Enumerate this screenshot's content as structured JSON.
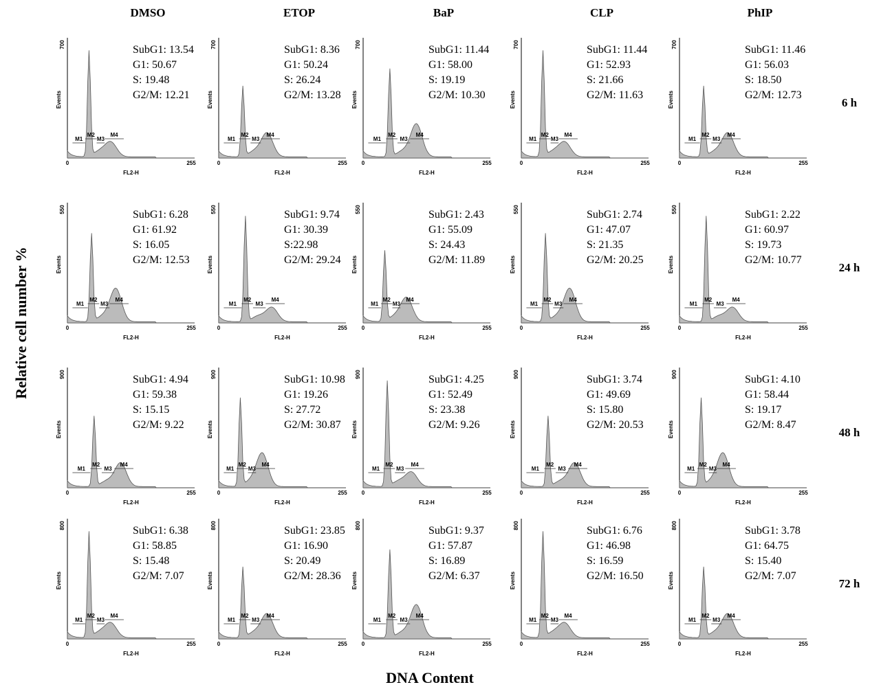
{
  "figure": {
    "columns": [
      "DMSO",
      "ETOP",
      "BaP",
      "CLP",
      "PhIP"
    ],
    "rows": [
      "6 h",
      "24 h",
      "48 h",
      "72 h"
    ],
    "row_ymax": [
      "700",
      "550",
      "900",
      "800"
    ],
    "y_label": "Relative cell number %",
    "x_label": "DNA Content",
    "panel_axis": {
      "y_label": "Events",
      "x_label": "FL2-H",
      "x_min": "0",
      "x_max": "255",
      "markers": [
        "M1",
        "M2",
        "M3",
        "M4"
      ]
    },
    "panels": [
      [
        [
          "SubG1: 13.54",
          "G1: 50.67",
          "S: 19.48",
          "G2/M: 12.21"
        ],
        [
          "SubG1: 8.36",
          "G1: 50.24",
          "S: 26.24",
          "G2/M: 13.28"
        ],
        [
          "SubG1: 11.44",
          "G1: 58.00",
          "S: 19.19",
          "G2/M: 10.30"
        ],
        [
          "SubG1: 11.44",
          "G1: 52.93",
          "S: 21.66",
          "G2/M: 11.63"
        ],
        [
          "SubG1: 11.46",
          "G1: 56.03",
          "S: 18.50",
          "G2/M: 12.73"
        ]
      ],
      [
        [
          "SubG1: 6.28",
          "G1: 61.92",
          "S: 16.05",
          "G2/M: 12.53"
        ],
        [
          "SubG1: 9.74",
          "G1: 30.39",
          "S:22.98",
          "G2/M: 29.24"
        ],
        [
          "SubG1: 2.43",
          "G1: 55.09",
          "S: 24.43",
          "G2/M: 11.89"
        ],
        [
          "SubG1: 2.74",
          "G1: 47.07",
          "S: 21.35",
          "G2/M: 20.25"
        ],
        [
          "SubG1: 2.22",
          "G1: 60.97",
          "S: 19.73",
          "G2/M: 10.77"
        ]
      ],
      [
        [
          "SubG1: 4.94",
          "G1: 59.38",
          "S: 15.15",
          "G2/M: 9.22"
        ],
        [
          "SubG1: 10.98",
          "G1: 19.26",
          "S: 27.72",
          "G2/M: 30.87"
        ],
        [
          "SubG1: 4.25",
          "G1: 52.49",
          "S: 23.38",
          "G2/M: 9.26"
        ],
        [
          "SubG1: 3.74",
          "G1: 49.69",
          "S: 15.80",
          "G2/M: 20.53"
        ],
        [
          "SubG1: 4.10",
          "G1: 58.44",
          "S: 19.17",
          "G2/M: 8.47"
        ]
      ],
      [
        [
          "SubG1: 6.38",
          "G1: 58.85",
          "S: 15.48",
          "G2/M: 7.07"
        ],
        [
          "SubG1: 23.85",
          "G1: 16.90",
          "S: 20.49",
          "G2/M: 28.36"
        ],
        [
          "SubG1: 9.37",
          "G1: 57.87",
          "S: 16.89",
          "G2/M: 6.37"
        ],
        [
          "SubG1: 6.76",
          "G1: 46.98",
          "S: 16.59",
          "G2/M: 16.50"
        ],
        [
          "SubG1: 3.78",
          "G1: 64.75",
          "S: 15.40",
          "G2/M: 7.07"
        ]
      ]
    ]
  }
}
